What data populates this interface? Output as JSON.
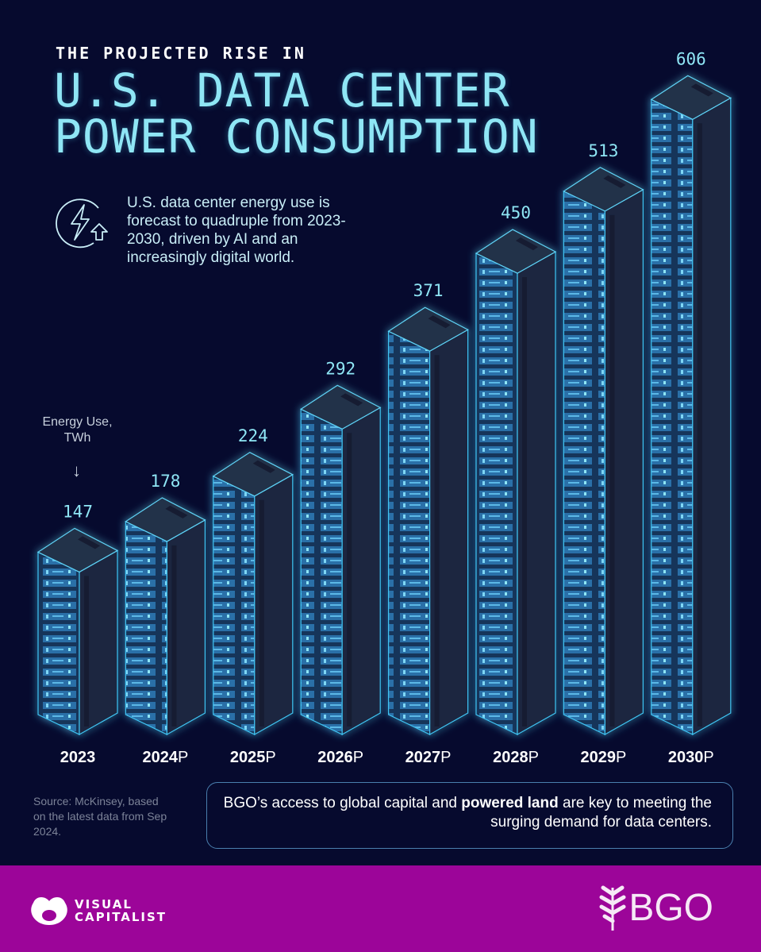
{
  "header": {
    "kicker": "THE PROJECTED RISE IN",
    "title_line1": "U.S. DATA CENTER",
    "title_line2": "POWER CONSUMPTION",
    "intro": "U.S. data center energy use is forecast to quadruple from 2023-2030, driven by AI and an increasingly digital world.",
    "icon": "lightning-bolt-up-arrow-icon"
  },
  "chart_data": {
    "type": "bar",
    "title": "U.S. Data Center Power Consumption",
    "ylabel": "Energy Use, TWh",
    "unit_label": "Energy Use, TWh",
    "categories": [
      "2023",
      "2024P",
      "2025P",
      "2026P",
      "2027P",
      "2028P",
      "2029P",
      "2030P"
    ],
    "values": [
      147,
      178,
      224,
      292,
      371,
      450,
      513,
      606
    ],
    "value_labels": [
      "147",
      "178",
      "224",
      "292",
      "371",
      "450",
      "513",
      "606"
    ],
    "ylim": [
      0,
      606
    ],
    "grid": false,
    "bar_style": "isometric server racks"
  },
  "footer": {
    "source": "Source: McKinsey, based on the latest data from Sep 2024.",
    "callout_pre": "BGO’s access to global capital and ",
    "callout_bold": "powered land",
    "callout_post": " are key to meeting the surging demand for data centers.",
    "brand_left": "VISUAL CAPITALIST",
    "brand_left_1": "VISUAL",
    "brand_left_2": "CAPITALIST",
    "brand_right": "BGO"
  },
  "colors": {
    "background": "#060a2e",
    "accent": "#8fe6f5",
    "footer": "#9c0599",
    "rack_front": "#1f3a5e",
    "rack_side": "#1a2438",
    "glow": "#2bb6f0"
  }
}
